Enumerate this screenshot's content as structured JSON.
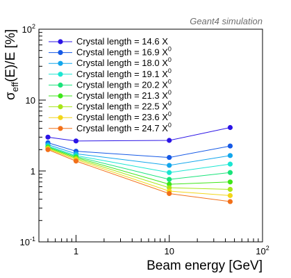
{
  "chart_data": {
    "type": "line",
    "annotation": "Geant4 simulation",
    "xlabel": "Beam energy [GeV]",
    "ylabel_base": "σ",
    "ylabel_sub": "eff",
    "ylabel_rest": "(E)/E [%]",
    "xscale": "log",
    "yscale": "log",
    "xlim": [
      0.4,
      100
    ],
    "ylim": [
      0.1,
      100
    ],
    "x_ticks": [
      {
        "base": "1",
        "exp": ""
      },
      {
        "base": "10",
        "exp": ""
      },
      {
        "base": "10",
        "exp": "2"
      }
    ],
    "y_ticks": [
      {
        "base": "10",
        "exp": "-1"
      },
      {
        "base": "1",
        "exp": ""
      },
      {
        "base": "10",
        "exp": ""
      },
      {
        "base": "10",
        "exp": "2"
      }
    ],
    "legend_position": "top-left",
    "x": [
      0.5,
      1,
      10,
      45
    ],
    "series": [
      {
        "name": "Crystal length = 14.6 X",
        "sub": "",
        "color": "#2b14e6",
        "values": [
          3.0,
          2.65,
          2.7,
          4.1
        ]
      },
      {
        "name": "Crystal length = 16.9 X",
        "sub": "0",
        "color": "#1559e6",
        "values": [
          2.5,
          1.9,
          1.55,
          2.25
        ]
      },
      {
        "name": "Crystal length = 18.0 X",
        "sub": "0",
        "color": "#12a6ec",
        "values": [
          2.35,
          1.75,
          1.2,
          1.65
        ]
      },
      {
        "name": "Crystal length = 19.1 X",
        "sub": "0",
        "color": "#1ae6d2",
        "values": [
          2.25,
          1.65,
          0.95,
          1.25
        ]
      },
      {
        "name": "Crystal length = 20.2 X",
        "sub": "0",
        "color": "#19e37a",
        "values": [
          2.2,
          1.6,
          0.76,
          0.95
        ]
      },
      {
        "name": "Crystal length = 21.3 X",
        "sub": "0",
        "color": "#3ee619",
        "values": [
          2.15,
          1.55,
          0.65,
          0.7
        ]
      },
      {
        "name": "Crystal length = 22.5 X",
        "sub": "0",
        "color": "#a8e619",
        "values": [
          2.1,
          1.5,
          0.58,
          0.55
        ]
      },
      {
        "name": "Crystal length = 23.6 X",
        "sub": "0",
        "color": "#f2d619",
        "values": [
          2.05,
          1.45,
          0.52,
          0.45
        ]
      },
      {
        "name": "Crystal length = 24.7 X",
        "sub": "0",
        "color": "#f27019",
        "values": [
          2.0,
          1.38,
          0.48,
          0.37
        ]
      }
    ]
  }
}
